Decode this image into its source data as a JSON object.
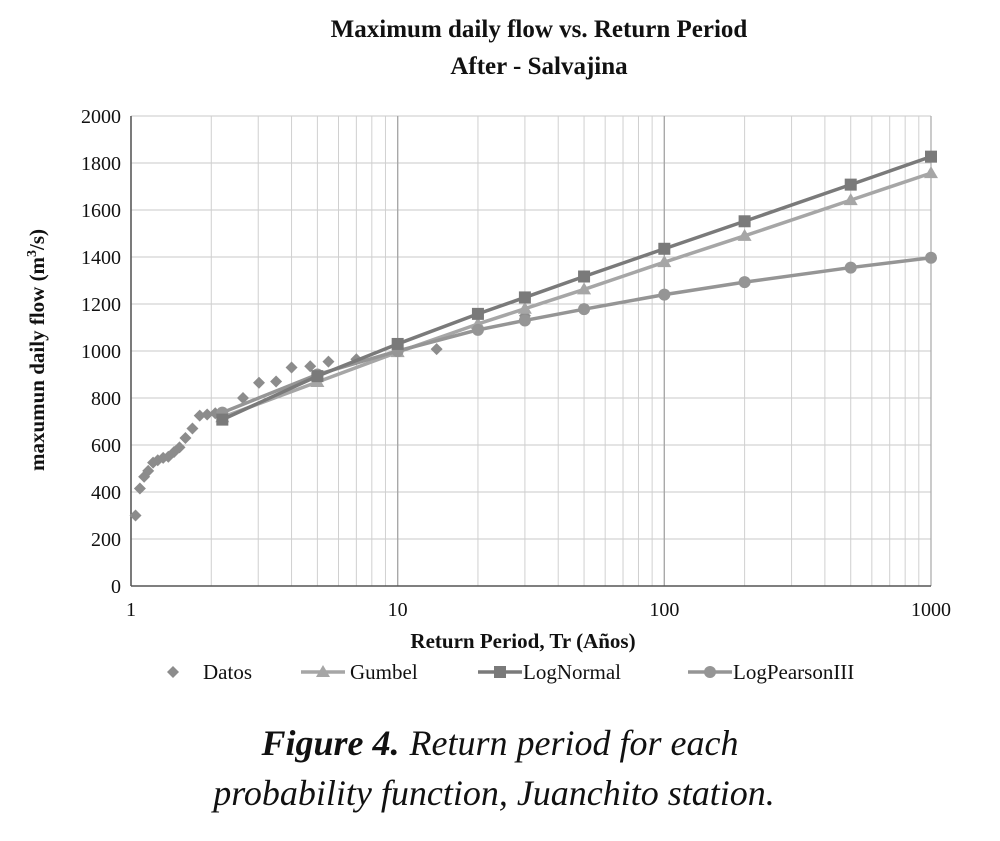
{
  "chart_data": {
    "type": "line",
    "title": "Maximum daily flow vs. Return Period",
    "subtitle": "After - Salvajina",
    "xlabel": "Return Period, Tr (Años)",
    "ylabel_main": "maxumun daily flow (m",
    "ylabel_sup": "3",
    "ylabel_end": "/s)",
    "x_scale": "log",
    "xlim": [
      1,
      1000
    ],
    "ylim": [
      0,
      2000
    ],
    "x_ticks": [
      1,
      10,
      100,
      1000
    ],
    "x_tick_labels": [
      "1",
      "10",
      "100",
      "1000"
    ],
    "y_ticks": [
      0,
      200,
      400,
      600,
      800,
      1000,
      1200,
      1400,
      1600,
      1800,
      2000
    ],
    "y_tick_labels": [
      "0",
      "200",
      "400",
      "600",
      "800",
      "1000",
      "1200",
      "1400",
      "1600",
      "1800",
      "2000"
    ],
    "grid": "on",
    "legend_position": "bottom",
    "series": [
      {
        "name": "Datos",
        "marker": "diamond",
        "line": false,
        "color": "#8c8c8c",
        "x": [
          1.04,
          1.08,
          1.12,
          1.16,
          1.21,
          1.26,
          1.32,
          1.38,
          1.45,
          1.52,
          1.6,
          1.7,
          1.81,
          1.93,
          2.07,
          2.23,
          2.63,
          3.02,
          3.5,
          4.0,
          4.7,
          5.5,
          7.0,
          14.0,
          30.0
        ],
        "y": [
          300,
          415,
          465,
          490,
          525,
          535,
          545,
          550,
          570,
          590,
          630,
          670,
          725,
          730,
          735,
          720,
          800,
          865,
          870,
          930,
          935,
          955,
          965,
          1008,
          1150
        ]
      },
      {
        "name": "Gumbel",
        "marker": "triangle",
        "line": true,
        "color": "#a6a6a6",
        "x": [
          2.2,
          5,
          10,
          20,
          30,
          50,
          100,
          200,
          500,
          1000
        ],
        "y": [
          718,
          868,
          995,
          1115,
          1180,
          1262,
          1378,
          1490,
          1642,
          1757
        ]
      },
      {
        "name": "LogNormal",
        "marker": "square",
        "line": true,
        "color": "#7a7a7a",
        "x": [
          2.2,
          5,
          10,
          20,
          30,
          50,
          100,
          200,
          500,
          1000
        ],
        "y": [
          708,
          893,
          1030,
          1158,
          1228,
          1317,
          1435,
          1552,
          1708,
          1827
        ]
      },
      {
        "name": "LogPearsonIII",
        "marker": "circle",
        "line": true,
        "color": "#959595",
        "x": [
          2.2,
          5,
          10,
          20,
          30,
          50,
          100,
          200,
          500,
          1000
        ],
        "y": [
          738,
          900,
          1000,
          1090,
          1130,
          1178,
          1240,
          1293,
          1355,
          1397
        ]
      }
    ]
  },
  "caption": {
    "label": "Figure 4.",
    "line1_rest": "Return period for each",
    "line2": "probability function, Juanchito station."
  }
}
